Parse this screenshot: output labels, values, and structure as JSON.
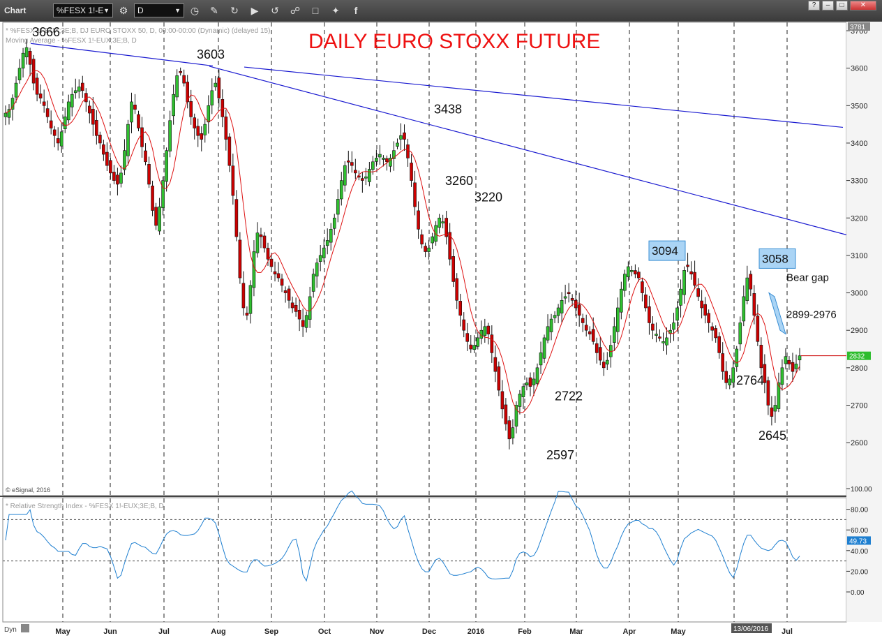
{
  "toolbar": {
    "window_title": "Chart",
    "symbol_value": "%FESX 1!-E",
    "interval_value": "D",
    "icons": [
      "symbol-settings-icon",
      "interval-settings-icon",
      "pencil-icon",
      "refresh-icon",
      "play-icon",
      "history-icon",
      "link-icon",
      "comment-icon",
      "twitter-icon",
      "facebook-icon"
    ],
    "window_buttons": [
      "?",
      "–",
      "□",
      "✕"
    ]
  },
  "chart": {
    "title": "DAILY EURO STOXX FUTURE",
    "legend_line1": "* %FESX 1!-EUX;3E;B, DJ EURO STOXX 50, D, 00:00-00:00 (Dynamic) (delayed 15)",
    "legend_line2": "Moving Average - %FESX 1!-EUX;3E;B, D",
    "copyright": "© eSignal, 2016",
    "rsi_legend": "* Relative Strength Index - %FESX 1!-EUX;3E;B, D",
    "corner_label": "Dyn",
    "date_cursor": "13/06/2016",
    "colors": {
      "up_candle": "#2fbf2f",
      "down_candle": "#cc0000",
      "moving_average": "#dd1111",
      "trendline": "#1a1ad0",
      "rsi": "#1e7fd0",
      "title": "#ee1111",
      "box_fill": "#aad4f5",
      "box_border": "#3b8fd4",
      "last_price_badge": "#2ebd2e",
      "rsi_badge": "#1e7fd0"
    }
  },
  "chart_data": {
    "type": "candlestick",
    "title": "DAILY EURO STOXX FUTURE",
    "x_months": [
      "May",
      "Jun",
      "Jul",
      "Aug",
      "Sep",
      "Oct",
      "Nov",
      "Dec",
      "2016",
      "Feb",
      "Mar",
      "Apr",
      "May",
      "Jul"
    ],
    "y_ticks": [
      2600,
      2700,
      2800,
      2900,
      3000,
      3100,
      3200,
      3300,
      3400,
      3500,
      3600,
      3700
    ],
    "ylim": [
      2510,
      3790
    ],
    "last_price": "2832",
    "top_label": "3781",
    "close_series": [
      3480,
      3490,
      3520,
      3560,
      3600,
      3640,
      3655,
      3610,
      3560,
      3530,
      3520,
      3500,
      3470,
      3440,
      3420,
      3400,
      3430,
      3470,
      3510,
      3530,
      3540,
      3550,
      3540,
      3510,
      3480,
      3450,
      3420,
      3400,
      3370,
      3340,
      3320,
      3300,
      3290,
      3320,
      3380,
      3450,
      3510,
      3490,
      3440,
      3390,
      3350,
      3290,
      3220,
      3180,
      3230,
      3300,
      3380,
      3460,
      3530,
      3580,
      3590,
      3560,
      3510,
      3470,
      3440,
      3420,
      3410,
      3450,
      3500,
      3540,
      3560,
      3520,
      3470,
      3410,
      3340,
      3260,
      3150,
      3040,
      2960,
      2940,
      3020,
      3110,
      3160,
      3150,
      3120,
      3090,
      3070,
      3050,
      3040,
      3020,
      3000,
      2980,
      2960,
      2950,
      2930,
      2910,
      2940,
      2990,
      3050,
      3080,
      3100,
      3120,
      3140,
      3170,
      3200,
      3250,
      3300,
      3340,
      3350,
      3340,
      3320,
      3310,
      3300,
      3310,
      3330,
      3350,
      3360,
      3370,
      3360,
      3350,
      3360,
      3380,
      3400,
      3420,
      3410,
      3360,
      3300,
      3230,
      3170,
      3130,
      3110,
      3120,
      3150,
      3180,
      3200,
      3190,
      3150,
      3090,
      3030,
      2980,
      2940,
      2900,
      2870,
      2850,
      2860,
      2880,
      2900,
      2910,
      2890,
      2840,
      2790,
      2740,
      2690,
      2650,
      2610,
      2640,
      2700,
      2730,
      2750,
      2760,
      2750,
      2770,
      2800,
      2840,
      2880,
      2910,
      2930,
      2940,
      2960,
      2980,
      2990,
      3000,
      2980,
      2960,
      2940,
      2920,
      2900,
      2890,
      2870,
      2840,
      2820,
      2800,
      2820,
      2860,
      2910,
      2960,
      3010,
      3050,
      3070,
      3060,
      3050,
      3040,
      3000,
      2960,
      2920,
      2900,
      2890,
      2880,
      2870,
      2880,
      2900,
      2920,
      2960,
      3010,
      3060,
      3070,
      3050,
      3020,
      2990,
      2960,
      2940,
      2920,
      2900,
      2880,
      2840,
      2790,
      2760,
      2770,
      2800,
      2850,
      2920,
      2990,
      3040,
      3010,
      2940,
      2870,
      2800,
      2760,
      2700,
      2670,
      2700,
      2760,
      2800,
      2830,
      2810,
      2790,
      2810,
      2832
    ],
    "rsi": {
      "range": [
        0,
        100
      ],
      "ticks": [
        "0.00",
        "20.00",
        "40.00",
        "60.00",
        "80.00",
        "100.00"
      ],
      "overbought": 70,
      "oversold": 30,
      "last_value": "49.73"
    },
    "annotations": [
      {
        "text": "3666",
        "value": 3666
      },
      {
        "text": "3603",
        "value": 3603
      },
      {
        "text": "3438",
        "value": 3438
      },
      {
        "text": "3260",
        "value": 3260
      },
      {
        "text": "3220",
        "value": 3220
      },
      {
        "text": "3094",
        "value": 3094,
        "boxed": true
      },
      {
        "text": "3058",
        "value": 3058,
        "boxed": true
      },
      {
        "text": "Bear gap",
        "value": 2976
      },
      {
        "text": "2899-2976",
        "value": 2899
      },
      {
        "text": "2764",
        "value": 2764
      },
      {
        "text": "2722",
        "value": 2722
      },
      {
        "text": "2645",
        "value": 2645
      },
      {
        "text": "2597",
        "value": 2597
      }
    ]
  }
}
